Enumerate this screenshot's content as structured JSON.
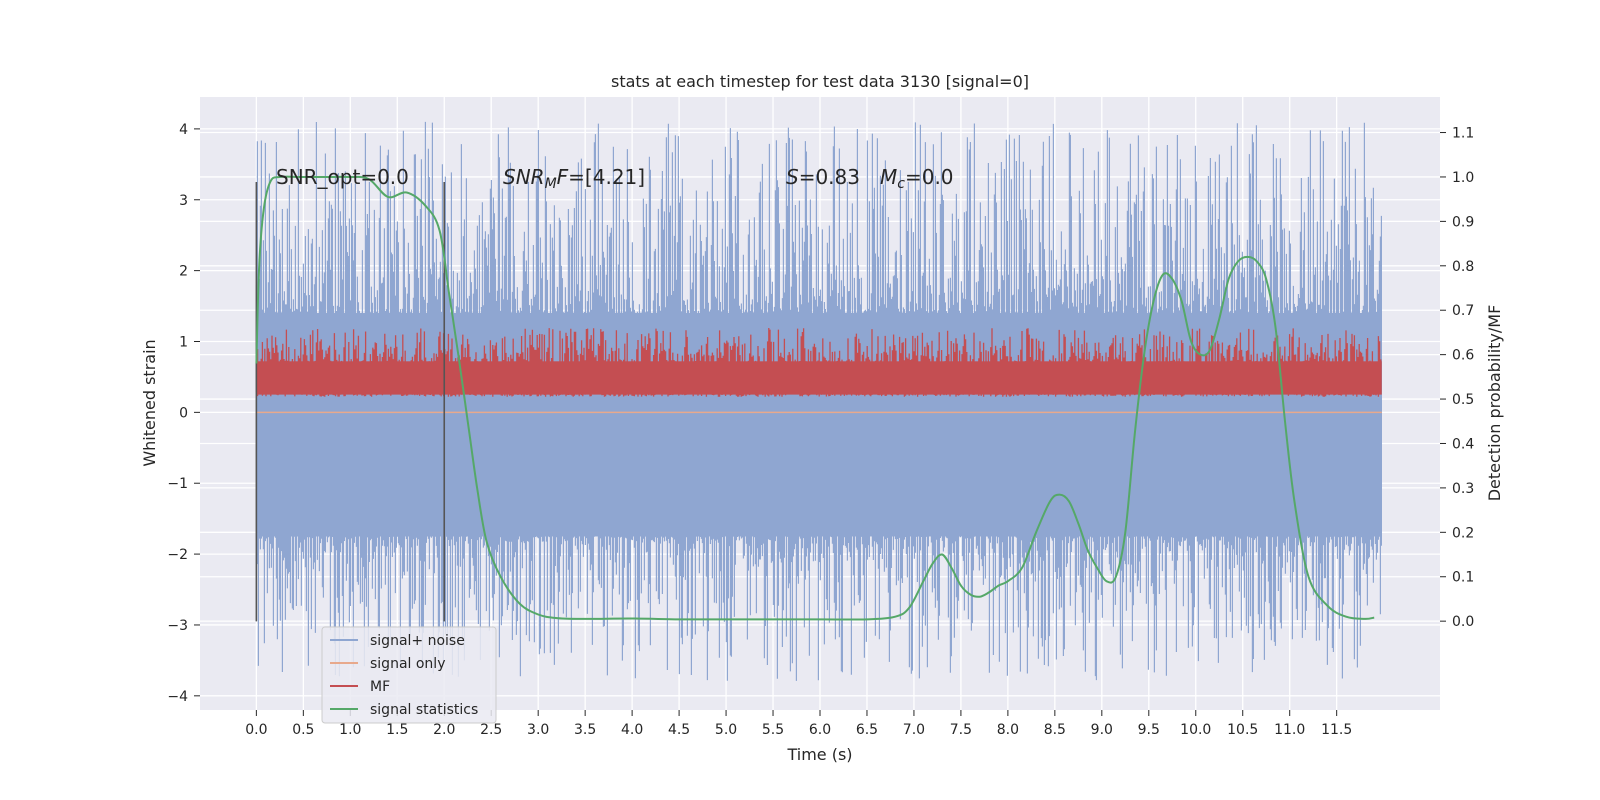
{
  "chart_data": {
    "type": "line",
    "title": "stats at each timestep for test data 3130 [signal=0]",
    "xlabel": "Time (s)",
    "ylabel": "Whitened strain",
    "ylabel_right": "Detection probability/MF",
    "xlim": [
      -0.6,
      12.6
    ],
    "ylim": [
      -4.2,
      4.45
    ],
    "ylim_right": [
      -0.2,
      1.18
    ],
    "x_ticks": [
      0.0,
      0.5,
      1.0,
      1.5,
      2.0,
      2.5,
      3.0,
      3.5,
      4.0,
      4.5,
      5.0,
      5.5,
      6.0,
      6.5,
      7.0,
      7.5,
      8.0,
      8.5,
      9.0,
      9.5,
      10.0,
      10.5,
      11.0,
      11.5
    ],
    "x_tick_labels": [
      "0.0",
      "0.5",
      "1.0",
      "1.5",
      "2.0",
      "2.5",
      "3.0",
      "3.5",
      "4.0",
      "4.5",
      "5.0",
      "5.5",
      "6.0",
      "6.5",
      "7.0",
      "7.5",
      "8.0",
      "8.5",
      "9.0",
      "9.5",
      "10.0",
      "10.5",
      "11.0",
      "11.5"
    ],
    "y_ticks": [
      -4,
      -3,
      -2,
      -1,
      0,
      1,
      2,
      3,
      4
    ],
    "y_tick_labels": [
      "−4",
      "−3",
      "−2",
      "−1",
      "0",
      "1",
      "2",
      "3",
      "4"
    ],
    "y_ticks_right": [
      0.0,
      0.1,
      0.2,
      0.3,
      0.4,
      0.5,
      0.6,
      0.7,
      0.8,
      0.9,
      1.0,
      1.1
    ],
    "y_tick_labels_right": [
      "0.0",
      "0.1",
      "0.2",
      "0.3",
      "0.4",
      "0.5",
      "0.6",
      "0.7",
      "0.8",
      "0.9",
      "1.0",
      "1.1"
    ],
    "grid": true,
    "legend_position": "lower-left",
    "annotations": {
      "snr_opt": "SNR_opt=0.0",
      "snr_mf_name": "SNR",
      "snr_mf_sub": "M",
      "snr_mf_rest": "F",
      "snr_mf_value": "=[4.21]",
      "s_name": "S",
      "s_value": "=0.83",
      "mc_name": "M",
      "mc_sub": "c",
      "mc_value": "=0.0"
    },
    "markers": [
      {
        "x": 0.0,
        "y_range": [
          -2.95,
          3.25
        ]
      },
      {
        "x": 2.0,
        "y_range": [
          -2.95,
          3.25
        ]
      }
    ],
    "series": [
      {
        "name": "signal+ noise",
        "color": "#8fa6d1",
        "x_range": [
          0.0,
          11.98
        ],
        "envelope": {
          "typical_low": -1.75,
          "typical_high": 1.4,
          "peak_low": -3.8,
          "peak_high": 4.1
        }
      },
      {
        "name": "signal only",
        "color": "#e8a98c",
        "x_range": [
          0.0,
          11.98
        ],
        "values_constant": 0.0
      },
      {
        "name": "MF",
        "color": "#c44e52",
        "axis": "right",
        "x_range": [
          0.0,
          11.98
        ],
        "envelope": {
          "typical_low": 0.505,
          "typical_high": 0.6,
          "peak_high": 0.66
        }
      },
      {
        "name": "signal statistics",
        "color": "#55a868",
        "axis": "right",
        "x": [
          0.0,
          0.03,
          0.08,
          0.15,
          0.25,
          0.5,
          0.8,
          1.0,
          1.2,
          1.4,
          1.6,
          1.8,
          1.95,
          2.05,
          2.15,
          2.25,
          2.35,
          2.45,
          2.6,
          2.8,
          3.0,
          3.2,
          3.5,
          4.0,
          4.5,
          5.0,
          5.5,
          6.0,
          6.5,
          6.8,
          6.95,
          7.1,
          7.2,
          7.3,
          7.4,
          7.5,
          7.6,
          7.7,
          7.8,
          7.9,
          8.0,
          8.15,
          8.3,
          8.45,
          8.55,
          8.65,
          8.75,
          8.85,
          8.95,
          9.05,
          9.15,
          9.25,
          9.35,
          9.45,
          9.55,
          9.65,
          9.75,
          9.85,
          9.95,
          10.05,
          10.15,
          10.25,
          10.35,
          10.45,
          10.55,
          10.65,
          10.75,
          10.85,
          10.95,
          11.05,
          11.2,
          11.4,
          11.6,
          11.8,
          11.9
        ],
        "values": [
          0.58,
          0.8,
          0.93,
          0.99,
          1.0,
          1.0,
          1.0,
          1.0,
          0.995,
          0.955,
          0.965,
          0.935,
          0.88,
          0.74,
          0.6,
          0.45,
          0.3,
          0.18,
          0.1,
          0.04,
          0.015,
          0.007,
          0.005,
          0.006,
          0.004,
          0.004,
          0.004,
          0.004,
          0.004,
          0.01,
          0.03,
          0.09,
          0.13,
          0.15,
          0.12,
          0.08,
          0.06,
          0.055,
          0.065,
          0.08,
          0.09,
          0.12,
          0.2,
          0.27,
          0.285,
          0.27,
          0.22,
          0.16,
          0.12,
          0.09,
          0.1,
          0.2,
          0.42,
          0.6,
          0.72,
          0.78,
          0.77,
          0.72,
          0.63,
          0.6,
          0.61,
          0.68,
          0.77,
          0.81,
          0.82,
          0.81,
          0.77,
          0.66,
          0.45,
          0.27,
          0.1,
          0.035,
          0.01,
          0.005,
          0.008
        ]
      }
    ]
  }
}
